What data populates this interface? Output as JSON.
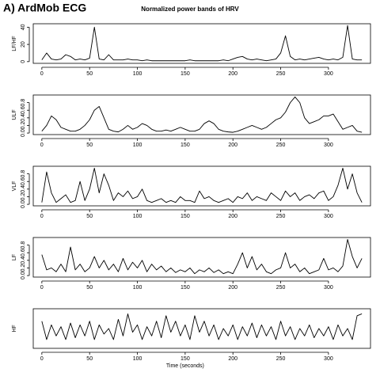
{
  "header": {
    "label": "A) ArdMob ECG"
  },
  "chart_data": [
    {
      "type": "line",
      "title": "Normalized power bands of HRV",
      "ylabel": "LF/HF",
      "color": "#000000",
      "x": [
        0,
        5,
        10,
        15,
        20,
        25,
        30,
        35,
        40,
        45,
        50,
        55,
        60,
        65,
        70,
        75,
        80,
        85,
        90,
        95,
        100,
        105,
        110,
        115,
        120,
        125,
        130,
        135,
        140,
        145,
        150,
        155,
        160,
        165,
        170,
        175,
        180,
        185,
        190,
        195,
        200,
        205,
        210,
        215,
        220,
        225,
        230,
        235,
        240,
        245,
        250,
        255,
        260,
        265,
        270,
        275,
        280,
        285,
        290,
        295,
        300,
        305,
        310,
        315,
        320,
        325,
        330,
        335
      ],
      "values": [
        2,
        10,
        3,
        2,
        3,
        8,
        6,
        2,
        3,
        2,
        4,
        40,
        3,
        2,
        8,
        2,
        2,
        2,
        3,
        2,
        2,
        1,
        2,
        1,
        1,
        1,
        1,
        1,
        1,
        1,
        1,
        2,
        1,
        1,
        1,
        1,
        1,
        1,
        2,
        1,
        3,
        5,
        6,
        3,
        2,
        3,
        2,
        1,
        2,
        3,
        10,
        30,
        6,
        2,
        3,
        2,
        3,
        4,
        5,
        3,
        2,
        3,
        2,
        5,
        42,
        3,
        2,
        2
      ],
      "xlim": [
        -9,
        344
      ],
      "xticks": [
        0,
        50,
        100,
        150,
        200,
        250,
        300
      ],
      "ylim": [
        -2,
        44
      ],
      "yticks": [
        0,
        20,
        40
      ]
    },
    {
      "type": "line",
      "ylabel": "ULF",
      "color": "#000000",
      "x": [
        0,
        5,
        10,
        15,
        20,
        25,
        30,
        35,
        40,
        45,
        50,
        55,
        60,
        65,
        70,
        75,
        80,
        85,
        90,
        95,
        100,
        105,
        110,
        115,
        120,
        125,
        130,
        135,
        140,
        145,
        150,
        155,
        160,
        165,
        170,
        175,
        180,
        185,
        190,
        195,
        200,
        205,
        210,
        215,
        220,
        225,
        230,
        235,
        240,
        245,
        250,
        255,
        260,
        265,
        270,
        275,
        280,
        285,
        290,
        295,
        300,
        305,
        310,
        315,
        320,
        325,
        330,
        335
      ],
      "values": [
        0.05,
        0.2,
        0.45,
        0.35,
        0.15,
        0.1,
        0.05,
        0.05,
        0.1,
        0.2,
        0.35,
        0.6,
        0.7,
        0.4,
        0.1,
        0.05,
        0.03,
        0.1,
        0.2,
        0.1,
        0.15,
        0.25,
        0.2,
        0.1,
        0.05,
        0.05,
        0.08,
        0.05,
        0.1,
        0.15,
        0.1,
        0.05,
        0.05,
        0.1,
        0.25,
        0.32,
        0.25,
        0.1,
        0.05,
        0.03,
        0.02,
        0.05,
        0.1,
        0.15,
        0.2,
        0.15,
        0.1,
        0.15,
        0.25,
        0.35,
        0.4,
        0.55,
        0.8,
        0.95,
        0.8,
        0.4,
        0.25,
        0.3,
        0.35,
        0.45,
        0.45,
        0.5,
        0.3,
        0.1,
        0.15,
        0.2,
        0.05,
        0.02
      ],
      "xlim": [
        -9,
        344
      ],
      "xticks": [
        0,
        50,
        100,
        150,
        200,
        250,
        300
      ],
      "ylim": [
        -0.04,
        1.0
      ],
      "yticks": [
        {
          "value": 0,
          "label": "0.0"
        },
        0.2,
        0.4,
        0.6,
        0.8
      ]
    },
    {
      "type": "line",
      "ylabel": "VLF",
      "color": "#000000",
      "x": [
        0,
        5,
        10,
        15,
        20,
        25,
        30,
        35,
        40,
        45,
        50,
        55,
        60,
        65,
        70,
        75,
        80,
        85,
        90,
        95,
        100,
        105,
        110,
        115,
        120,
        125,
        130,
        135,
        140,
        145,
        150,
        155,
        160,
        165,
        170,
        175,
        180,
        185,
        190,
        195,
        200,
        205,
        210,
        215,
        220,
        225,
        230,
        235,
        240,
        245,
        250,
        255,
        260,
        265,
        270,
        275,
        280,
        285,
        290,
        295,
        300,
        305,
        310,
        315,
        320,
        325,
        330,
        335
      ],
      "values": [
        0.05,
        0.85,
        0.3,
        0.05,
        0.15,
        0.25,
        0.05,
        0.1,
        0.6,
        0.1,
        0.4,
        0.95,
        0.3,
        0.8,
        0.5,
        0.1,
        0.3,
        0.2,
        0.35,
        0.15,
        0.2,
        0.4,
        0.1,
        0.05,
        0.1,
        0.15,
        0.05,
        0.1,
        0.05,
        0.2,
        0.1,
        0.1,
        0.05,
        0.35,
        0.15,
        0.2,
        0.1,
        0.05,
        0.1,
        0.15,
        0.05,
        0.2,
        0.15,
        0.3,
        0.1,
        0.2,
        0.15,
        0.1,
        0.3,
        0.2,
        0.1,
        0.35,
        0.2,
        0.3,
        0.1,
        0.2,
        0.25,
        0.15,
        0.3,
        0.35,
        0.1,
        0.2,
        0.5,
        0.95,
        0.4,
        0.8,
        0.3,
        0.05
      ],
      "xlim": [
        -9,
        344
      ],
      "xticks": [
        0,
        50,
        100,
        150,
        200,
        250,
        300
      ],
      "ylim": [
        -0.04,
        1.0
      ],
      "yticks": [
        {
          "value": 0,
          "label": "0.0"
        },
        0.2,
        0.4,
        0.6,
        0.8
      ]
    },
    {
      "type": "line",
      "ylabel": "LF",
      "color": "#000000",
      "x": [
        0,
        5,
        10,
        15,
        20,
        25,
        30,
        35,
        40,
        45,
        50,
        55,
        60,
        65,
        70,
        75,
        80,
        85,
        90,
        95,
        100,
        105,
        110,
        115,
        120,
        125,
        130,
        135,
        140,
        145,
        150,
        155,
        160,
        165,
        170,
        175,
        180,
        185,
        190,
        195,
        200,
        205,
        210,
        215,
        220,
        225,
        230,
        235,
        240,
        245,
        250,
        255,
        260,
        265,
        270,
        275,
        280,
        285,
        290,
        295,
        300,
        305,
        310,
        315,
        320,
        325,
        330,
        335
      ],
      "values": [
        0.55,
        0.15,
        0.2,
        0.1,
        0.3,
        0.1,
        0.75,
        0.15,
        0.3,
        0.1,
        0.2,
        0.5,
        0.2,
        0.4,
        0.15,
        0.3,
        0.1,
        0.45,
        0.15,
        0.35,
        0.2,
        0.4,
        0.1,
        0.3,
        0.15,
        0.25,
        0.1,
        0.2,
        0.08,
        0.15,
        0.1,
        0.2,
        0.05,
        0.15,
        0.1,
        0.2,
        0.08,
        0.15,
        0.05,
        0.1,
        0.05,
        0.3,
        0.6,
        0.2,
        0.5,
        0.15,
        0.3,
        0.1,
        0.05,
        0.15,
        0.2,
        0.6,
        0.2,
        0.3,
        0.1,
        0.2,
        0.05,
        0.1,
        0.15,
        0.45,
        0.15,
        0.2,
        0.1,
        0.25,
        0.95,
        0.5,
        0.2,
        0.45
      ],
      "xlim": [
        -9,
        344
      ],
      "xticks": [
        0,
        50,
        100,
        150,
        200,
        250,
        300
      ],
      "ylim": [
        -0.04,
        1.0
      ],
      "yticks": [
        {
          "value": 0,
          "label": "0.0"
        },
        0.2,
        0.4,
        0.6,
        0.8
      ]
    },
    {
      "type": "line",
      "ylabel": "HF",
      "xlabel": "Time (seconds)",
      "color": "#000000",
      "x": [
        0,
        5,
        10,
        15,
        20,
        25,
        30,
        35,
        40,
        45,
        50,
        55,
        60,
        65,
        70,
        75,
        80,
        85,
        90,
        95,
        100,
        105,
        110,
        115,
        120,
        125,
        130,
        135,
        140,
        145,
        150,
        155,
        160,
        165,
        170,
        175,
        180,
        185,
        190,
        195,
        200,
        205,
        210,
        215,
        220,
        225,
        230,
        235,
        240,
        245,
        250,
        255,
        260,
        265,
        270,
        275,
        280,
        285,
        290,
        295,
        300,
        305,
        310,
        315,
        320,
        325,
        330,
        335
      ],
      "values": [
        0.7,
        0.2,
        0.6,
        0.3,
        0.55,
        0.2,
        0.65,
        0.25,
        0.6,
        0.3,
        0.7,
        0.2,
        0.6,
        0.35,
        0.5,
        0.2,
        0.75,
        0.3,
        0.9,
        0.4,
        0.6,
        0.2,
        0.55,
        0.3,
        0.7,
        0.25,
        0.85,
        0.4,
        0.7,
        0.3,
        0.6,
        0.2,
        0.85,
        0.4,
        0.7,
        0.3,
        0.6,
        0.2,
        0.5,
        0.3,
        0.6,
        0.2,
        0.55,
        0.3,
        0.65,
        0.25,
        0.6,
        0.3,
        0.55,
        0.2,
        0.7,
        0.3,
        0.55,
        0.2,
        0.5,
        0.3,
        0.6,
        0.25,
        0.5,
        0.3,
        0.55,
        0.2,
        0.6,
        0.3,
        0.5,
        0.2,
        0.85,
        0.9
      ],
      "xlim": [
        -9,
        344
      ],
      "xticks": [
        0,
        50,
        100,
        150,
        200,
        250,
        300
      ],
      "ylim": [
        -0.04,
        1.04
      ],
      "yticks": []
    }
  ]
}
